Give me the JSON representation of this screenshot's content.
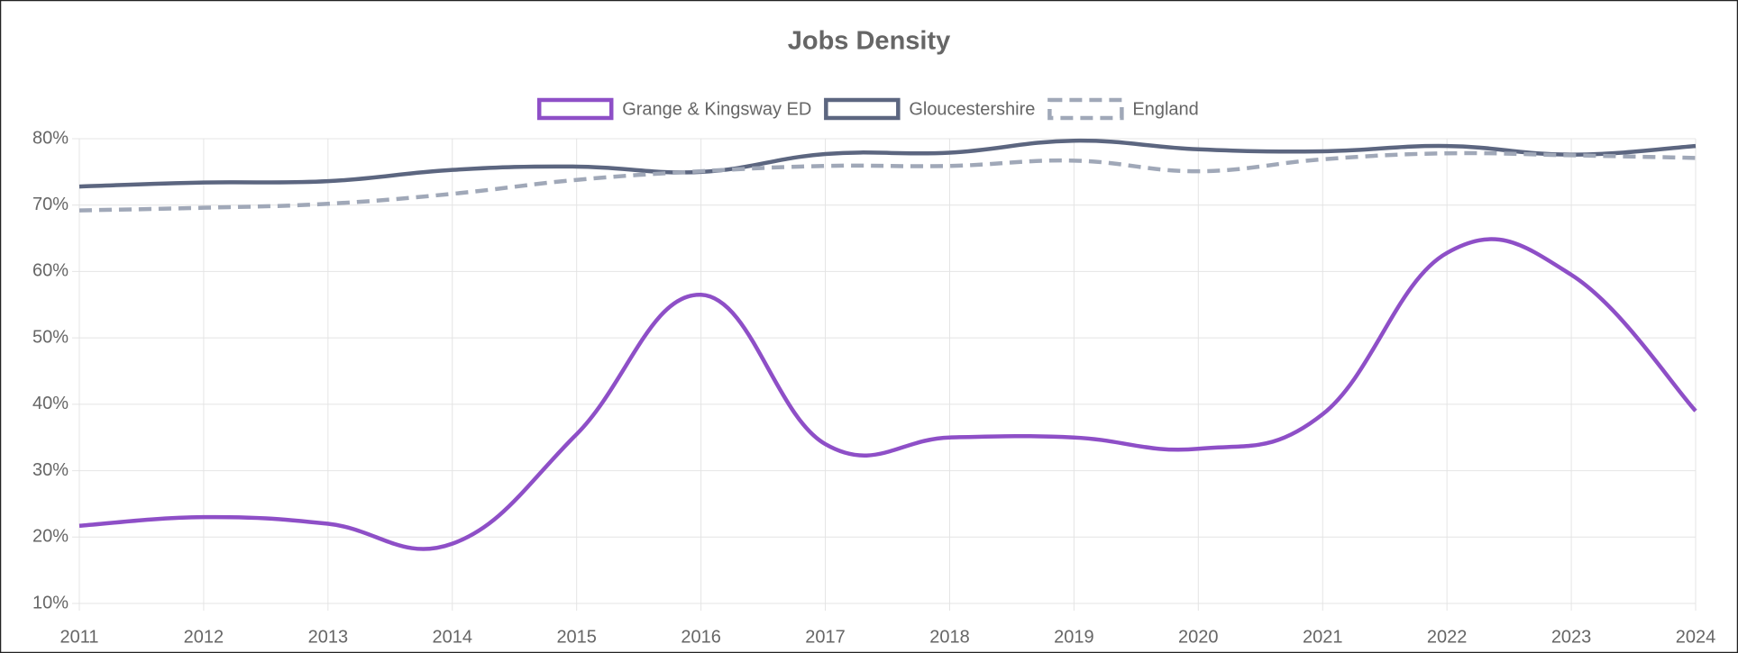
{
  "chart_data": {
    "type": "line",
    "title": "Jobs Density",
    "categories": [
      "2011",
      "2012",
      "2013",
      "2014",
      "2015",
      "2016",
      "2017",
      "2018",
      "2019",
      "2020",
      "2021",
      "2022",
      "2023",
      "2024"
    ],
    "series": [
      {
        "name": "Grange & Kingsway ED",
        "color": "#8e4fc7",
        "dashed": false,
        "values": [
          21.7,
          23,
          22,
          19,
          35.5,
          56.5,
          34,
          35,
          35,
          33.3,
          38.5,
          62.8,
          59.5,
          39
        ]
      },
      {
        "name": "Gloucestershire",
        "color": "#5c6680",
        "dashed": false,
        "values": [
          72.8,
          73.4,
          73.6,
          75.3,
          75.8,
          75,
          77.7,
          77.9,
          79.7,
          78.4,
          78.1,
          78.9,
          77.6,
          78.9
        ]
      },
      {
        "name": "England",
        "color": "#a0a8b8",
        "dashed": true,
        "values": [
          69.2,
          69.6,
          70.2,
          71.7,
          73.8,
          75.1,
          75.9,
          75.9,
          76.7,
          75.1,
          76.9,
          77.8,
          77.5,
          77.1
        ]
      }
    ],
    "ylim": [
      10,
      80
    ],
    "yticks": [
      {
        "value": 10,
        "label": "10%"
      },
      {
        "value": 20,
        "label": "20%"
      },
      {
        "value": 30,
        "label": "30%"
      },
      {
        "value": 40,
        "label": "40%"
      },
      {
        "value": 50,
        "label": "50%"
      },
      {
        "value": 60,
        "label": "60%"
      },
      {
        "value": 70,
        "label": "70%"
      },
      {
        "value": 80,
        "label": "80%"
      }
    ],
    "grid": true,
    "legend": "top"
  }
}
